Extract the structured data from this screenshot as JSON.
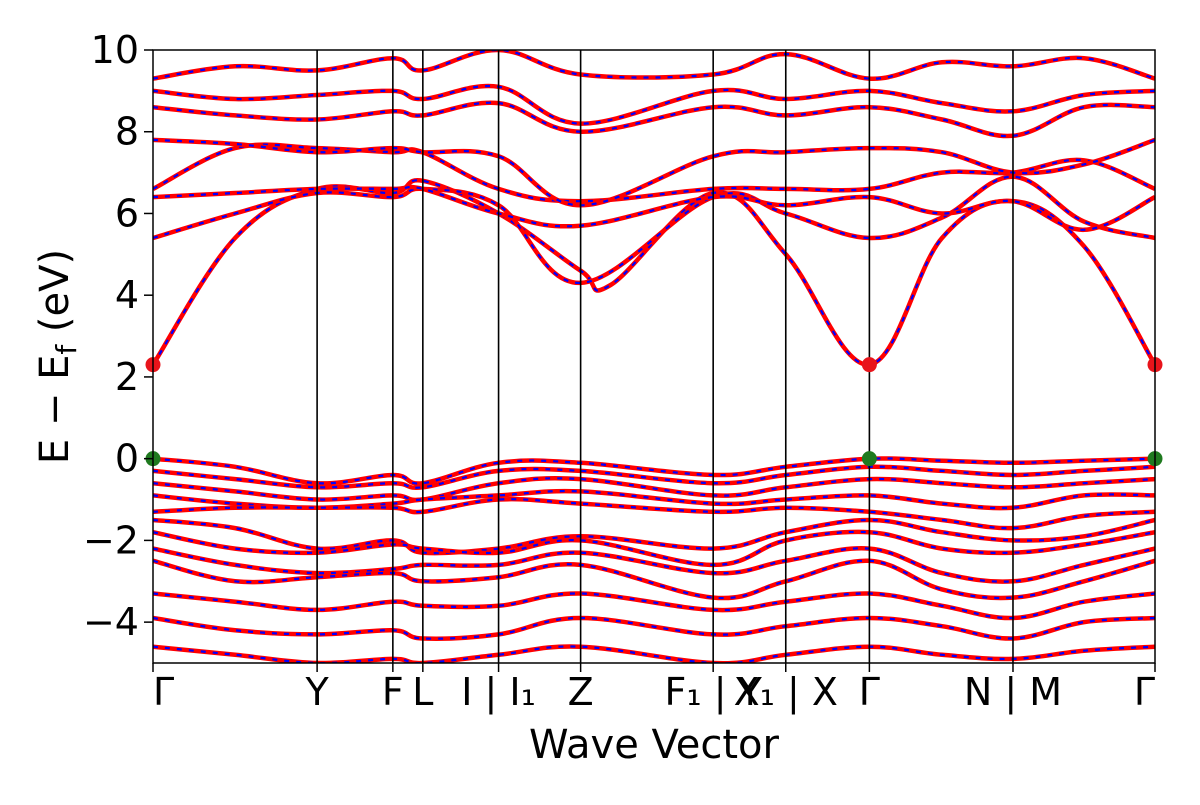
{
  "chart_data": {
    "type": "line",
    "title": "",
    "xlabel": "Wave Vector",
    "ylabel": "E − E_f (eV)",
    "ylabel_main": "E − E",
    "ylabel_sub": "f",
    "ylabel_unit": " (eV)",
    "ylim": [
      -5,
      10
    ],
    "yticks": [
      -4,
      -2,
      0,
      2,
      4,
      6,
      8,
      10
    ],
    "ytick_labels": [
      "−4",
      "−2",
      "0",
      "2",
      "4",
      "6",
      "8",
      "10"
    ],
    "xlim": [
      0,
      6.35
    ],
    "grid": false,
    "legend": "none",
    "colors": {
      "band_solid": "#ff0000",
      "band_dashed": "#0000ff",
      "cbm_marker": "#e8141b",
      "vbm_marker": "#1f7a1f",
      "kpath_line": "#000000"
    },
    "kpath": [
      {
        "label": "Γ",
        "x": 0.0
      },
      {
        "label": "Y",
        "x": 1.04
      },
      {
        "label": "F",
        "x": 1.52
      },
      {
        "label": "L",
        "x": 1.71
      },
      {
        "label": "I | I₁",
        "x": 2.19
      },
      {
        "label": "Z",
        "x": 2.71
      },
      {
        "label": "F₁ | Y",
        "x": 3.55
      },
      {
        "label": "X₁ | X",
        "x": 4.01
      },
      {
        "label": "Γ",
        "x": 4.54
      },
      {
        "label": "N | M",
        "x": 5.45
      },
      {
        "label": "Γ",
        "x": 6.35
      }
    ],
    "band_gap_markers": [
      {
        "type": "cbm",
        "x": 0.0,
        "y": 2.3
      },
      {
        "type": "cbm",
        "x": 4.54,
        "y": 2.3
      },
      {
        "type": "cbm",
        "x": 6.35,
        "y": 2.3
      },
      {
        "type": "vbm",
        "x": 0.0,
        "y": 0.0
      },
      {
        "type": "vbm",
        "x": 4.54,
        "y": 0.0
      },
      {
        "type": "vbm",
        "x": 6.35,
        "y": 0.0
      }
    ],
    "bands_note": "",
    "series": [
      {
        "name": "",
        "type": "conduction",
        "x": [
          0,
          0.52,
          1.04,
          1.52,
          1.71,
          2.19,
          2.71,
          2.9,
          3.55,
          4.01,
          4.54,
          5.0,
          5.45,
          5.9,
          6.35
        ],
        "y": [
          2.3,
          5.4,
          6.6,
          6.5,
          6.8,
          6.0,
          4.6,
          4.25,
          6.5,
          5.0,
          2.3,
          5.4,
          6.3,
          5.2,
          2.3
        ]
      },
      {
        "name": "",
        "type": "conduction",
        "x": [
          0,
          0.52,
          1.04,
          1.52,
          1.71,
          2.19,
          2.71,
          3.55,
          4.01,
          4.54,
          5.0,
          5.45,
          5.9,
          6.35
        ],
        "y": [
          5.4,
          6.0,
          6.5,
          6.4,
          6.6,
          6.2,
          4.3,
          6.4,
          6.0,
          5.4,
          5.9,
          6.9,
          5.8,
          5.4
        ]
      },
      {
        "name": "",
        "type": "conduction",
        "x": [
          0,
          0.52,
          1.04,
          1.52,
          1.71,
          2.19,
          2.71,
          3.55,
          4.01,
          4.54,
          5.0,
          5.45,
          5.9,
          6.35
        ],
        "y": [
          6.4,
          6.5,
          6.6,
          6.6,
          6.6,
          6.0,
          5.7,
          6.4,
          6.2,
          6.4,
          6.0,
          6.3,
          5.6,
          6.4
        ]
      },
      {
        "name": "",
        "type": "conduction",
        "x": [
          0,
          0.52,
          1.04,
          1.52,
          1.71,
          2.19,
          2.71,
          3.55,
          4.01,
          4.54,
          5.0,
          5.45,
          5.9,
          6.35
        ],
        "y": [
          6.6,
          7.6,
          7.6,
          7.5,
          7.5,
          6.6,
          6.3,
          6.6,
          6.6,
          6.6,
          7.0,
          7.0,
          7.3,
          6.6
        ]
      },
      {
        "name": "",
        "type": "conduction",
        "x": [
          0,
          0.52,
          1.04,
          1.52,
          1.71,
          2.19,
          2.71,
          3.55,
          4.01,
          4.54,
          5.0,
          5.45,
          5.9,
          6.35
        ],
        "y": [
          7.8,
          7.7,
          7.5,
          7.6,
          7.5,
          7.4,
          6.2,
          7.4,
          7.5,
          7.6,
          7.5,
          7.0,
          7.2,
          7.8
        ]
      },
      {
        "name": "",
        "type": "conduction",
        "x": [
          0,
          0.52,
          1.04,
          1.52,
          1.71,
          2.19,
          2.71,
          3.55,
          4.01,
          4.54,
          5.0,
          5.45,
          5.9,
          6.35
        ],
        "y": [
          8.6,
          8.4,
          8.3,
          8.5,
          8.4,
          8.7,
          8.0,
          8.6,
          8.4,
          8.6,
          8.3,
          7.9,
          8.6,
          8.6
        ]
      },
      {
        "name": "",
        "type": "conduction",
        "x": [
          0,
          0.52,
          1.04,
          1.52,
          1.71,
          2.19,
          2.71,
          3.55,
          4.01,
          4.54,
          5.0,
          5.45,
          5.9,
          6.35
        ],
        "y": [
          9.0,
          8.8,
          8.9,
          9.0,
          8.8,
          9.1,
          8.2,
          9.0,
          8.8,
          9.0,
          8.7,
          8.5,
          8.9,
          9.0
        ]
      },
      {
        "name": "",
        "type": "conduction",
        "x": [
          0,
          0.52,
          1.04,
          1.52,
          1.71,
          2.19,
          2.71,
          3.55,
          4.01,
          4.54,
          5.0,
          5.45,
          5.9,
          6.35
        ],
        "y": [
          9.3,
          9.6,
          9.5,
          9.8,
          9.5,
          10.0,
          9.4,
          9.4,
          9.9,
          9.3,
          9.7,
          9.6,
          9.8,
          9.3
        ]
      },
      {
        "name": "",
        "type": "valence",
        "x": [
          0,
          0.52,
          1.04,
          1.52,
          1.71,
          2.19,
          2.71,
          3.55,
          4.01,
          4.54,
          5.0,
          5.45,
          5.9,
          6.35
        ],
        "y": [
          0.0,
          -0.2,
          -0.6,
          -0.4,
          -0.6,
          -0.1,
          -0.1,
          -0.4,
          -0.2,
          0.0,
          -0.05,
          -0.1,
          -0.05,
          0.0
        ]
      },
      {
        "name": "",
        "type": "valence",
        "x": [
          0,
          0.52,
          1.04,
          1.52,
          1.71,
          2.19,
          2.71,
          3.55,
          4.01,
          4.54,
          5.0,
          5.45,
          5.9,
          6.35
        ],
        "y": [
          -0.3,
          -0.5,
          -0.7,
          -0.6,
          -0.7,
          -0.3,
          -0.3,
          -0.6,
          -0.4,
          -0.2,
          -0.3,
          -0.4,
          -0.3,
          -0.2
        ]
      },
      {
        "name": "",
        "type": "valence",
        "x": [
          0,
          0.52,
          1.04,
          1.52,
          1.71,
          2.19,
          2.71,
          3.55,
          4.01,
          4.54,
          5.0,
          5.45,
          5.9,
          6.35
        ],
        "y": [
          -0.6,
          -0.8,
          -1.0,
          -0.9,
          -1.0,
          -0.6,
          -0.5,
          -0.9,
          -0.7,
          -0.5,
          -0.6,
          -0.7,
          -0.6,
          -0.5
        ]
      },
      {
        "name": "",
        "type": "valence",
        "x": [
          0,
          0.52,
          1.04,
          1.52,
          1.71,
          2.19,
          2.71,
          3.55,
          4.01,
          4.54,
          5.0,
          5.45,
          5.9,
          6.35
        ],
        "y": [
          -0.9,
          -1.1,
          -1.2,
          -1.1,
          -1.0,
          -0.9,
          -0.8,
          -1.1,
          -1.0,
          -0.9,
          -1.1,
          -1.2,
          -0.9,
          -0.9
        ]
      },
      {
        "name": "",
        "type": "valence",
        "x": [
          0,
          0.52,
          1.04,
          1.52,
          1.71,
          2.19,
          2.71,
          3.55,
          4.01,
          4.54,
          5.0,
          5.45,
          5.9,
          6.35
        ],
        "y": [
          -1.3,
          -1.2,
          -1.2,
          -1.2,
          -1.3,
          -1.0,
          -1.1,
          -1.3,
          -1.2,
          -1.3,
          -1.5,
          -1.7,
          -1.4,
          -1.3
        ]
      },
      {
        "name": "",
        "type": "valence",
        "x": [
          0,
          0.52,
          1.04,
          1.52,
          1.71,
          2.19,
          2.71,
          3.55,
          4.01,
          4.54,
          5.0,
          5.45,
          5.9,
          6.35
        ],
        "y": [
          -1.5,
          -1.7,
          -2.2,
          -2.0,
          -2.3,
          -2.2,
          -1.9,
          -2.2,
          -1.8,
          -1.5,
          -1.8,
          -2.0,
          -1.9,
          -1.5
        ]
      },
      {
        "name": "",
        "type": "valence",
        "x": [
          0,
          0.52,
          1.04,
          1.52,
          1.71,
          2.19,
          2.71,
          3.55,
          4.01,
          4.54,
          5.0,
          5.45,
          5.9,
          6.35
        ],
        "y": [
          -1.8,
          -2.2,
          -2.3,
          -2.1,
          -2.2,
          -2.3,
          -2.0,
          -2.6,
          -2.0,
          -1.8,
          -2.2,
          -2.3,
          -2.1,
          -1.8
        ]
      },
      {
        "name": "",
        "type": "valence",
        "x": [
          0,
          0.52,
          1.04,
          1.52,
          1.71,
          2.19,
          2.71,
          3.55,
          4.01,
          4.54,
          5.0,
          5.45,
          5.9,
          6.35
        ],
        "y": [
          -2.2,
          -2.6,
          -2.8,
          -2.7,
          -2.6,
          -2.6,
          -2.3,
          -2.8,
          -2.5,
          -2.2,
          -2.8,
          -3.0,
          -2.6,
          -2.2
        ]
      },
      {
        "name": "",
        "type": "valence",
        "x": [
          0,
          0.52,
          1.04,
          1.52,
          1.71,
          2.19,
          2.71,
          3.55,
          4.01,
          4.54,
          5.0,
          5.45,
          5.9,
          6.35
        ],
        "y": [
          -2.5,
          -3.0,
          -2.9,
          -2.8,
          -3.0,
          -2.9,
          -2.6,
          -3.4,
          -3.0,
          -2.5,
          -3.2,
          -3.4,
          -3.0,
          -2.5
        ]
      },
      {
        "name": "",
        "type": "valence",
        "x": [
          0,
          0.52,
          1.04,
          1.52,
          1.71,
          2.19,
          2.71,
          3.55,
          4.01,
          4.54,
          5.0,
          5.45,
          5.9,
          6.35
        ],
        "y": [
          -3.3,
          -3.5,
          -3.7,
          -3.5,
          -3.6,
          -3.6,
          -3.3,
          -3.7,
          -3.5,
          -3.3,
          -3.6,
          -3.9,
          -3.5,
          -3.3
        ]
      },
      {
        "name": "",
        "type": "valence",
        "x": [
          0,
          0.52,
          1.04,
          1.52,
          1.71,
          2.19,
          2.71,
          3.55,
          4.01,
          4.54,
          5.0,
          5.45,
          5.9,
          6.35
        ],
        "y": [
          -3.9,
          -4.2,
          -4.3,
          -4.2,
          -4.4,
          -4.3,
          -3.9,
          -4.3,
          -4.1,
          -3.9,
          -4.1,
          -4.4,
          -4.0,
          -3.9
        ]
      },
      {
        "name": "",
        "type": "valence",
        "x": [
          0,
          0.52,
          1.04,
          1.52,
          1.71,
          2.19,
          2.71,
          3.55,
          4.01,
          4.54,
          5.0,
          5.45,
          5.9,
          6.35
        ],
        "y": [
          -4.6,
          -4.8,
          -5.0,
          -4.9,
          -5.0,
          -4.8,
          -4.6,
          -5.0,
          -4.8,
          -4.6,
          -4.8,
          -4.9,
          -4.7,
          -4.6
        ]
      }
    ]
  }
}
